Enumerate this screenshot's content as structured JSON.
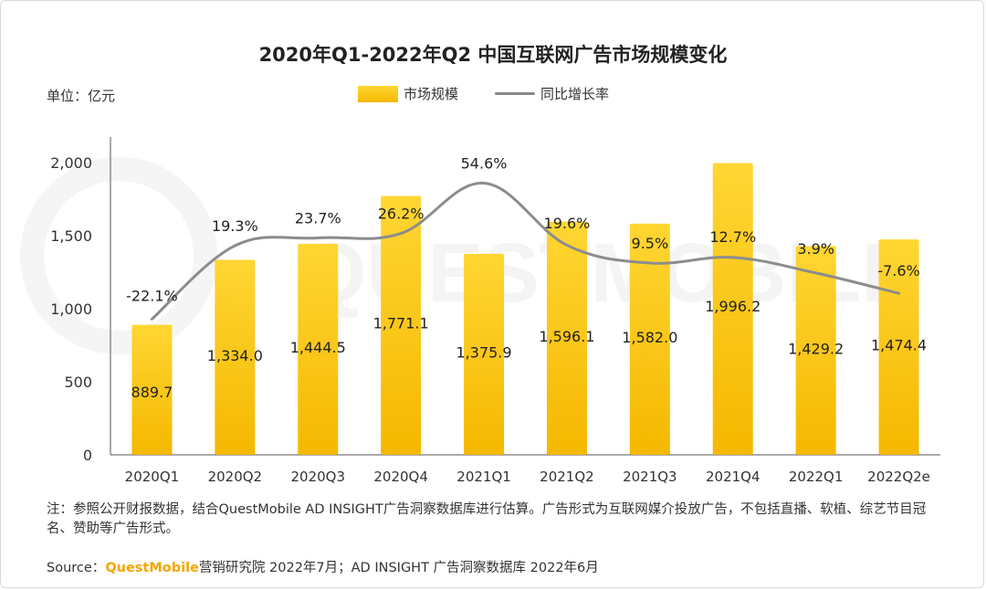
{
  "title": "2020年Q1-2022年Q2 中国互联网广告市场规模变化",
  "unit_label": "单位：亿元",
  "legend": {
    "bar": "市场规模",
    "line": "同比增长率"
  },
  "watermark": "QUESTMOBILE",
  "colors": {
    "bar_top": "#ffd633",
    "bar_bottom": "#f5b800",
    "line": "#8c8c8c",
    "brand": "#f5a600"
  },
  "chart_data": {
    "type": "bar",
    "categories": [
      "2020Q1",
      "2020Q2",
      "2020Q3",
      "2020Q4",
      "2021Q1",
      "2021Q2",
      "2021Q3",
      "2021Q4",
      "2022Q1",
      "2022Q2e"
    ],
    "series": [
      {
        "name": "市场规模",
        "type": "bar",
        "values": [
          889.7,
          1334.0,
          1444.5,
          1771.1,
          1375.9,
          1596.1,
          1582.0,
          1996.2,
          1429.2,
          1474.4
        ],
        "labels": [
          "889.7",
          "1,334.0",
          "1,444.5",
          "1,771.1",
          "1,375.9",
          "1,596.1",
          "1,582.0",
          "1,996.2",
          "1,429.2",
          "1,474.4"
        ]
      },
      {
        "name": "同比增长率",
        "type": "line",
        "axis": "secondary",
        "values": [
          -22.1,
          19.3,
          23.7,
          26.2,
          54.6,
          19.6,
          9.5,
          12.7,
          3.9,
          -7.6
        ],
        "labels": [
          "-22.1%",
          "19.3%",
          "23.7%",
          "26.2%",
          "54.6%",
          "19.6%",
          "9.5%",
          "12.7%",
          "3.9%",
          "-7.6%"
        ]
      }
    ],
    "ylim": [
      0,
      2000
    ],
    "yticks": [
      0,
      500,
      1000,
      1500,
      2000
    ],
    "ytick_labels": [
      "0",
      "500",
      "1,000",
      "1,500",
      "2,000"
    ],
    "legend_position": "top-center",
    "grid": false
  },
  "note": "注：参照公开财报数据，结合QuestMobile AD INSIGHT广告洞察数据库进行估算。广告形式为互联网媒介投放广告，不包括直播、软植、综艺节目冠名、赞助等广告形式。",
  "source": {
    "prefix": "Source：",
    "brand": "QuestMobile",
    "rest": "营销研究院 2022年7月；AD INSIGHT 广告洞察数据库 2022年6月"
  }
}
